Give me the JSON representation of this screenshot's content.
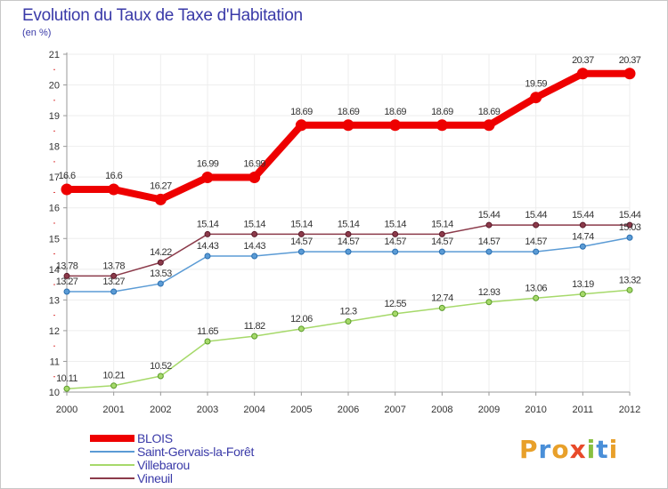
{
  "title": "Evolution du Taux de Taxe d'Habitation",
  "subtitle": "(en %)",
  "brand": "Proxiti",
  "brand_colors": [
    "#e8a02a",
    "#4a8fd8",
    "#e8a02a",
    "#e84a2a",
    "#88c040",
    "#4a8fd8",
    "#e8a02a"
  ],
  "chart_data": {
    "type": "line",
    "x": [
      "2000",
      "2001",
      "2002",
      "2003",
      "2004",
      "2005",
      "2006",
      "2007",
      "2008",
      "2009",
      "2010",
      "2011",
      "2012"
    ],
    "ylim": [
      10,
      21
    ],
    "yticks": [
      "10",
      "11",
      "12",
      "13",
      "14",
      "15",
      "16",
      "17",
      "18",
      "19",
      "20",
      "21"
    ],
    "grid": true,
    "legend_position": "bottom-left",
    "series": [
      {
        "name": "BLOIS",
        "color": "#ee0000",
        "values": [
          16.6,
          16.6,
          16.27,
          16.99,
          16.99,
          18.69,
          18.69,
          18.69,
          18.69,
          18.69,
          19.59,
          20.37,
          20.37
        ],
        "labels": [
          "16.6",
          "16.6",
          "16.27",
          "16.99",
          "16.99",
          "18.69",
          "18.69",
          "18.69",
          "18.69",
          "18.69",
          "19.59",
          "20.37",
          "20.37"
        ]
      },
      {
        "name": "Saint-Gervais-la-Forêt",
        "color": "#5b9bd5",
        "values": [
          13.27,
          13.27,
          13.53,
          14.43,
          14.43,
          14.57,
          14.57,
          14.57,
          14.57,
          14.57,
          14.57,
          14.74,
          15.03
        ],
        "labels": [
          "13.27",
          "13.27",
          "13.53",
          "14.43",
          "14.43",
          "14.57",
          "14.57",
          "14.57",
          "14.57",
          "14.57",
          "14.57",
          "14.74",
          "15.03"
        ]
      },
      {
        "name": "Villebarou",
        "color": "#a6d96a",
        "values": [
          10.11,
          10.21,
          10.52,
          11.65,
          11.82,
          12.06,
          12.3,
          12.55,
          12.74,
          12.93,
          13.06,
          13.19,
          13.32
        ],
        "labels": [
          "10.11",
          "10.21",
          "10.52",
          "11.65",
          "11.82",
          "12.06",
          "12.3",
          "12.55",
          "12.74",
          "12.93",
          "13.06",
          "13.19",
          "13.32"
        ]
      },
      {
        "name": "Vineuil",
        "color": "#8b3a4a",
        "values": [
          13.78,
          13.78,
          14.22,
          15.14,
          15.14,
          15.14,
          15.14,
          15.14,
          15.14,
          15.44,
          15.44,
          15.44,
          15.44
        ],
        "labels": [
          "13.78",
          "13.78",
          "14.22",
          "15.14",
          "15.14",
          "15.14",
          "15.14",
          "15.14",
          "15.14",
          "15.44",
          "15.44",
          "15.44",
          "15.44"
        ]
      }
    ]
  }
}
